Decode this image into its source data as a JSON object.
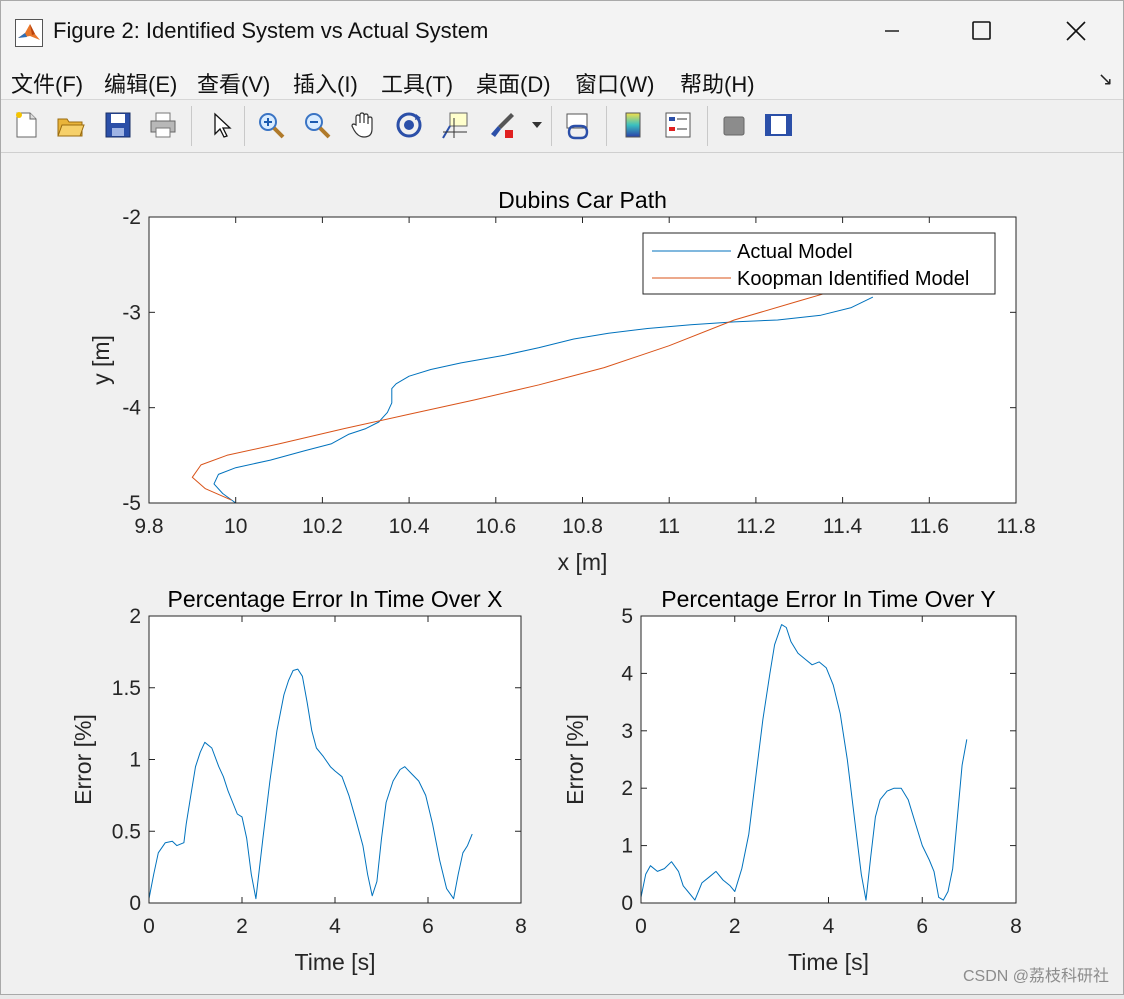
{
  "window": {
    "title": "Figure 2: Identified System vs Actual System"
  },
  "menu": {
    "items": [
      "文件(F)",
      "编辑(E)",
      "查看(V)",
      "插入(I)",
      "工具(T)",
      "桌面(D)",
      "窗口(W)",
      "帮助(H)"
    ]
  },
  "toolbar": {
    "icons": [
      "new-figure-icon",
      "open-file-icon",
      "save-icon",
      "print-icon",
      "select-pointer-icon",
      "zoom-in-icon",
      "zoom-out-icon",
      "pan-hand-icon",
      "rotate-3d-icon",
      "data-cursor-icon",
      "brush-icon",
      "link-plot-icon",
      "colorbar-icon",
      "legend-icon",
      "hide-plot-tools-icon",
      "show-plot-tools-icon"
    ]
  },
  "colors": {
    "actual": "#0072BD",
    "koopman": "#D95319"
  },
  "chart_data": [
    {
      "type": "line",
      "title": "Dubins Car Path",
      "xlabel": "x [m]",
      "ylabel": "y [m]",
      "xlim": [
        9.8,
        11.8
      ],
      "ylim": [
        -5,
        -2
      ],
      "xticks": [
        "9.8",
        "10",
        "10.2",
        "10.4",
        "10.6",
        "10.8",
        "11",
        "11.2",
        "11.4",
        "11.6",
        "11.8"
      ],
      "yticks": [
        "-2",
        "-3",
        "-4",
        "-5"
      ],
      "legend": "top-right",
      "series": [
        {
          "name": "Actual Model",
          "x": [
            10.0,
            9.97,
            9.95,
            9.96,
            10.0,
            10.08,
            10.16,
            10.22,
            10.26,
            10.3,
            10.33,
            10.35,
            10.36,
            10.36,
            10.37,
            10.4,
            10.45,
            10.52,
            10.62,
            10.7,
            10.78,
            10.86,
            10.95,
            11.05,
            11.15,
            11.25,
            11.35,
            11.42,
            11.47
          ],
          "y": [
            -5.0,
            -4.9,
            -4.8,
            -4.7,
            -4.63,
            -4.55,
            -4.45,
            -4.38,
            -4.28,
            -4.22,
            -4.15,
            -4.05,
            -3.95,
            -3.8,
            -3.75,
            -3.67,
            -3.6,
            -3.53,
            -3.45,
            -3.37,
            -3.28,
            -3.22,
            -3.17,
            -3.13,
            -3.1,
            -3.08,
            -3.03,
            -2.95,
            -2.84
          ]
        },
        {
          "name": "Koopman Identified Model",
          "x": [
            9.99,
            9.93,
            9.9,
            9.92,
            9.98,
            10.1,
            10.25,
            10.4,
            10.55,
            10.7,
            10.85,
            11.0,
            11.15,
            11.3,
            11.36
          ],
          "y": [
            -4.97,
            -4.85,
            -4.73,
            -4.6,
            -4.5,
            -4.38,
            -4.22,
            -4.07,
            -3.92,
            -3.76,
            -3.58,
            -3.35,
            -3.08,
            -2.88,
            -2.8
          ]
        }
      ]
    },
    {
      "type": "line",
      "title": "Percentage Error In Time Over X",
      "xlabel": "Time [s]",
      "ylabel": "Error [%]",
      "xlim": [
        0,
        8
      ],
      "ylim": [
        0,
        2
      ],
      "xticks": [
        "0",
        "2",
        "4",
        "6",
        "8"
      ],
      "yticks": [
        "0",
        "0.5",
        "1",
        "1.5",
        "2"
      ],
      "series": [
        {
          "name": "",
          "x": [
            0.0,
            0.1,
            0.2,
            0.35,
            0.5,
            0.6,
            0.75,
            0.8,
            0.9,
            1.0,
            1.1,
            1.2,
            1.35,
            1.5,
            1.6,
            1.7,
            1.8,
            1.9,
            2.0,
            2.1,
            2.2,
            2.3,
            2.45,
            2.6,
            2.75,
            2.9,
            3.0,
            3.1,
            3.2,
            3.3,
            3.4,
            3.5,
            3.6,
            3.75,
            3.9,
            4.0,
            4.15,
            4.3,
            4.45,
            4.6,
            4.7,
            4.8,
            4.9,
            5.0,
            5.1,
            5.25,
            5.4,
            5.5,
            5.65,
            5.8,
            5.95,
            6.1,
            6.25,
            6.4,
            6.55,
            6.65,
            6.75,
            6.85,
            6.95
          ],
          "y": [
            0.03,
            0.2,
            0.35,
            0.42,
            0.43,
            0.4,
            0.42,
            0.55,
            0.75,
            0.95,
            1.05,
            1.12,
            1.08,
            0.95,
            0.88,
            0.78,
            0.7,
            0.62,
            0.6,
            0.45,
            0.2,
            0.03,
            0.45,
            0.85,
            1.2,
            1.45,
            1.55,
            1.62,
            1.63,
            1.58,
            1.4,
            1.2,
            1.08,
            1.02,
            0.95,
            0.92,
            0.88,
            0.75,
            0.58,
            0.4,
            0.2,
            0.05,
            0.15,
            0.45,
            0.7,
            0.85,
            0.93,
            0.95,
            0.9,
            0.85,
            0.75,
            0.55,
            0.3,
            0.1,
            0.03,
            0.2,
            0.35,
            0.4,
            0.48
          ]
        }
      ]
    },
    {
      "type": "line",
      "title": "Percentage Error In Time Over Y",
      "xlabel": "Time [s]",
      "ylabel": "Error [%]",
      "xlim": [
        0,
        8
      ],
      "ylim": [
        0,
        5
      ],
      "xticks": [
        "0",
        "2",
        "4",
        "6",
        "8"
      ],
      "yticks": [
        "0",
        "1",
        "2",
        "3",
        "4",
        "5"
      ],
      "series": [
        {
          "name": "",
          "x": [
            0.0,
            0.1,
            0.2,
            0.35,
            0.5,
            0.65,
            0.8,
            0.9,
            1.0,
            1.15,
            1.3,
            1.45,
            1.6,
            1.75,
            1.9,
            2.0,
            2.15,
            2.3,
            2.45,
            2.6,
            2.75,
            2.85,
            3.0,
            3.1,
            3.2,
            3.35,
            3.5,
            3.65,
            3.8,
            3.95,
            4.1,
            4.25,
            4.4,
            4.55,
            4.7,
            4.8,
            4.9,
            5.0,
            5.1,
            5.25,
            5.4,
            5.55,
            5.7,
            5.85,
            6.0,
            6.15,
            6.25,
            6.35,
            6.45,
            6.55,
            6.65,
            6.75,
            6.85,
            6.95
          ],
          "y": [
            0.1,
            0.5,
            0.65,
            0.55,
            0.6,
            0.72,
            0.55,
            0.3,
            0.2,
            0.05,
            0.35,
            0.45,
            0.55,
            0.4,
            0.3,
            0.2,
            0.6,
            1.2,
            2.2,
            3.2,
            4.0,
            4.5,
            4.85,
            4.8,
            4.55,
            4.35,
            4.25,
            4.15,
            4.2,
            4.1,
            3.8,
            3.3,
            2.5,
            1.5,
            0.5,
            0.05,
            0.8,
            1.5,
            1.8,
            1.95,
            2.0,
            2.0,
            1.8,
            1.4,
            1.0,
            0.75,
            0.55,
            0.1,
            0.05,
            0.2,
            0.6,
            1.5,
            2.4,
            2.85
          ]
        }
      ]
    }
  ],
  "watermark": "CSDN @荔枝科研社"
}
